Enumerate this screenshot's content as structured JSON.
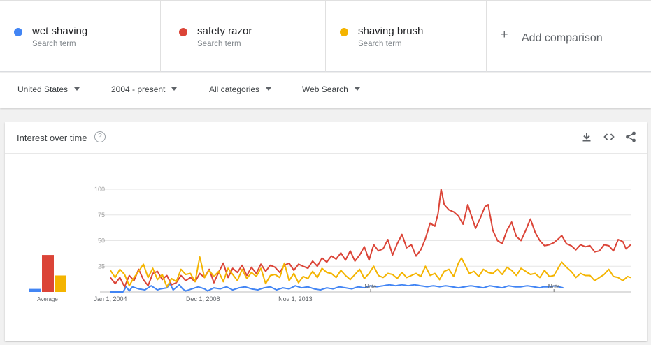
{
  "terms": [
    {
      "name": "wet shaving",
      "sub": "Search term",
      "color": "#4285f4"
    },
    {
      "name": "safety razor",
      "sub": "Search term",
      "color": "#db4437"
    },
    {
      "name": "shaving brush",
      "sub": "Search term",
      "color": "#f4b400"
    }
  ],
  "add_comparison": {
    "plus": "+",
    "label": "Add comparison"
  },
  "filters": {
    "region": "United States",
    "time": "2004 - present",
    "category": "All categories",
    "search_type": "Web Search"
  },
  "card": {
    "title": "Interest over time",
    "help": "?",
    "icons": [
      "download-icon",
      "embed-icon",
      "share-icon"
    ]
  },
  "chart_data": {
    "type": "line",
    "x_tick_labels": [
      "Jan 1, 2004",
      "Dec 1, 2008",
      "Nov 1, 2013"
    ],
    "y_ticks": [
      25,
      50,
      75,
      100
    ],
    "ylim": [
      0,
      100
    ],
    "notes": [
      "Note",
      "Note"
    ],
    "average_label": "Average",
    "averages": [
      {
        "name": "wet shaving",
        "value": 3
      },
      {
        "name": "safety razor",
        "value": 36
      },
      {
        "name": "shaving brush",
        "value": 16
      }
    ],
    "x_start": "2004-01",
    "x_end": "2018-10",
    "series": [
      {
        "name": "wet shaving",
        "color": "#4285f4",
        "anchors": [
          [
            0,
            0
          ],
          [
            8,
            0
          ],
          [
            10,
            5
          ],
          [
            12,
            1
          ],
          [
            14,
            5
          ],
          [
            18,
            3
          ],
          [
            22,
            2
          ],
          [
            26,
            6
          ],
          [
            30,
            2
          ],
          [
            32,
            3
          ],
          [
            36,
            4
          ],
          [
            38,
            8
          ],
          [
            40,
            2
          ],
          [
            44,
            7
          ],
          [
            46,
            3
          ],
          [
            48,
            1
          ],
          [
            52,
            3
          ],
          [
            56,
            5
          ],
          [
            60,
            3
          ],
          [
            62,
            1
          ],
          [
            66,
            4
          ],
          [
            70,
            3
          ],
          [
            74,
            5
          ],
          [
            78,
            2
          ],
          [
            82,
            4
          ],
          [
            86,
            5
          ],
          [
            90,
            3
          ],
          [
            94,
            2
          ],
          [
            98,
            4
          ],
          [
            102,
            5
          ],
          [
            106,
            2
          ],
          [
            110,
            4
          ],
          [
            114,
            3
          ],
          [
            118,
            6
          ],
          [
            122,
            4
          ],
          [
            126,
            5
          ],
          [
            130,
            3
          ],
          [
            134,
            2
          ],
          [
            138,
            4
          ],
          [
            142,
            3
          ],
          [
            146,
            5
          ],
          [
            150,
            4
          ],
          [
            154,
            3
          ],
          [
            158,
            5
          ],
          [
            162,
            4
          ],
          [
            166,
            6
          ],
          [
            170,
            5
          ],
          [
            174,
            6
          ],
          [
            178,
            7
          ],
          [
            182,
            6
          ],
          [
            186,
            7
          ],
          [
            190,
            6
          ],
          [
            194,
            7
          ],
          [
            198,
            6
          ],
          [
            202,
            5
          ],
          [
            206,
            6
          ],
          [
            210,
            5
          ],
          [
            214,
            6
          ],
          [
            218,
            5
          ],
          [
            222,
            4
          ],
          [
            226,
            5
          ],
          [
            230,
            6
          ],
          [
            234,
            5
          ],
          [
            238,
            4
          ],
          [
            242,
            6
          ],
          [
            246,
            5
          ],
          [
            250,
            4
          ],
          [
            254,
            6
          ],
          [
            258,
            5
          ],
          [
            262,
            5
          ],
          [
            266,
            6
          ],
          [
            270,
            5
          ],
          [
            274,
            4
          ],
          [
            276,
            5
          ],
          [
            280,
            5
          ],
          [
            284,
            6
          ],
          [
            286,
            5
          ],
          [
            289,
            4
          ]
        ]
      },
      {
        "name": "safety razor",
        "color": "#db4437",
        "anchors": [
          [
            0,
            14
          ],
          [
            3,
            8
          ],
          [
            6,
            14
          ],
          [
            9,
            5
          ],
          [
            12,
            16
          ],
          [
            15,
            11
          ],
          [
            18,
            22
          ],
          [
            21,
            12
          ],
          [
            24,
            6
          ],
          [
            27,
            18
          ],
          [
            30,
            20
          ],
          [
            33,
            12
          ],
          [
            36,
            16
          ],
          [
            39,
            7
          ],
          [
            42,
            9
          ],
          [
            45,
            16
          ],
          [
            48,
            11
          ],
          [
            51,
            14
          ],
          [
            54,
            10
          ],
          [
            57,
            18
          ],
          [
            60,
            14
          ],
          [
            63,
            22
          ],
          [
            66,
            9
          ],
          [
            69,
            19
          ],
          [
            72,
            28
          ],
          [
            75,
            14
          ],
          [
            78,
            23
          ],
          [
            81,
            19
          ],
          [
            84,
            26
          ],
          [
            87,
            16
          ],
          [
            90,
            24
          ],
          [
            93,
            18
          ],
          [
            96,
            27
          ],
          [
            99,
            20
          ],
          [
            102,
            26
          ],
          [
            105,
            24
          ],
          [
            108,
            19
          ],
          [
            111,
            26
          ],
          [
            114,
            28
          ],
          [
            117,
            21
          ],
          [
            120,
            27
          ],
          [
            123,
            25
          ],
          [
            126,
            23
          ],
          [
            129,
            30
          ],
          [
            132,
            25
          ],
          [
            135,
            33
          ],
          [
            138,
            29
          ],
          [
            141,
            35
          ],
          [
            144,
            32
          ],
          [
            147,
            38
          ],
          [
            150,
            31
          ],
          [
            153,
            40
          ],
          [
            156,
            30
          ],
          [
            159,
            36
          ],
          [
            162,
            44
          ],
          [
            165,
            31
          ],
          [
            168,
            46
          ],
          [
            171,
            40
          ],
          [
            174,
            42
          ],
          [
            177,
            51
          ],
          [
            180,
            36
          ],
          [
            183,
            47
          ],
          [
            186,
            56
          ],
          [
            189,
            43
          ],
          [
            192,
            46
          ],
          [
            195,
            35
          ],
          [
            198,
            41
          ],
          [
            201,
            52
          ],
          [
            204,
            67
          ],
          [
            207,
            64
          ],
          [
            209,
            76
          ],
          [
            211,
            100
          ],
          [
            213,
            85
          ],
          [
            216,
            80
          ],
          [
            219,
            78
          ],
          [
            222,
            74
          ],
          [
            225,
            66
          ],
          [
            228,
            85
          ],
          [
            231,
            71
          ],
          [
            233,
            62
          ],
          [
            236,
            72
          ],
          [
            239,
            83
          ],
          [
            241,
            85
          ],
          [
            244,
            60
          ],
          [
            247,
            50
          ],
          [
            250,
            47
          ],
          [
            253,
            60
          ],
          [
            256,
            68
          ],
          [
            259,
            54
          ],
          [
            262,
            50
          ],
          [
            265,
            60
          ],
          [
            268,
            71
          ],
          [
            271,
            58
          ],
          [
            274,
            50
          ],
          [
            277,
            45
          ],
          [
            280,
            46
          ],
          [
            283,
            48
          ],
          [
            286,
            52
          ],
          [
            288,
            55
          ],
          [
            291,
            47
          ],
          [
            294,
            45
          ],
          [
            297,
            41
          ],
          [
            300,
            46
          ],
          [
            303,
            44
          ],
          [
            306,
            45
          ],
          [
            309,
            39
          ],
          [
            312,
            40
          ],
          [
            315,
            46
          ],
          [
            318,
            45
          ],
          [
            321,
            40
          ],
          [
            324,
            51
          ],
          [
            327,
            49
          ],
          [
            329,
            42
          ],
          [
            332,
            46
          ]
        ]
      },
      {
        "name": "shaving brush",
        "color": "#f4b400",
        "anchors": [
          [
            0,
            21
          ],
          [
            3,
            14
          ],
          [
            6,
            22
          ],
          [
            9,
            17
          ],
          [
            12,
            6
          ],
          [
            15,
            14
          ],
          [
            18,
            20
          ],
          [
            21,
            27
          ],
          [
            24,
            14
          ],
          [
            27,
            23
          ],
          [
            30,
            12
          ],
          [
            33,
            17
          ],
          [
            36,
            5
          ],
          [
            39,
            13
          ],
          [
            42,
            10
          ],
          [
            45,
            22
          ],
          [
            48,
            17
          ],
          [
            51,
            18
          ],
          [
            54,
            10
          ],
          [
            57,
            34
          ],
          [
            60,
            14
          ],
          [
            63,
            21
          ],
          [
            66,
            15
          ],
          [
            69,
            20
          ],
          [
            72,
            10
          ],
          [
            75,
            23
          ],
          [
            78,
            17
          ],
          [
            81,
            11
          ],
          [
            84,
            22
          ],
          [
            87,
            13
          ],
          [
            90,
            19
          ],
          [
            93,
            15
          ],
          [
            96,
            23
          ],
          [
            99,
            8
          ],
          [
            102,
            16
          ],
          [
            105,
            17
          ],
          [
            108,
            14
          ],
          [
            111,
            28
          ],
          [
            114,
            11
          ],
          [
            117,
            18
          ],
          [
            120,
            9
          ],
          [
            123,
            15
          ],
          [
            126,
            13
          ],
          [
            129,
            20
          ],
          [
            132,
            14
          ],
          [
            135,
            23
          ],
          [
            138,
            19
          ],
          [
            141,
            18
          ],
          [
            144,
            14
          ],
          [
            147,
            21
          ],
          [
            150,
            16
          ],
          [
            153,
            12
          ],
          [
            156,
            17
          ],
          [
            159,
            22
          ],
          [
            162,
            13
          ],
          [
            165,
            18
          ],
          [
            168,
            25
          ],
          [
            171,
            16
          ],
          [
            174,
            14
          ],
          [
            177,
            18
          ],
          [
            180,
            17
          ],
          [
            183,
            13
          ],
          [
            186,
            19
          ],
          [
            189,
            14
          ],
          [
            192,
            16
          ],
          [
            195,
            18
          ],
          [
            198,
            15
          ],
          [
            201,
            25
          ],
          [
            204,
            16
          ],
          [
            207,
            18
          ],
          [
            210,
            12
          ],
          [
            213,
            20
          ],
          [
            216,
            22
          ],
          [
            219,
            15
          ],
          [
            222,
            28
          ],
          [
            224,
            33
          ],
          [
            226,
            27
          ],
          [
            229,
            18
          ],
          [
            232,
            20
          ],
          [
            235,
            15
          ],
          [
            238,
            22
          ],
          [
            241,
            19
          ],
          [
            244,
            18
          ],
          [
            247,
            22
          ],
          [
            250,
            17
          ],
          [
            253,
            24
          ],
          [
            256,
            21
          ],
          [
            259,
            16
          ],
          [
            262,
            23
          ],
          [
            265,
            20
          ],
          [
            268,
            17
          ],
          [
            271,
            18
          ],
          [
            274,
            14
          ],
          [
            277,
            21
          ],
          [
            280,
            15
          ],
          [
            283,
            16
          ],
          [
            286,
            24
          ],
          [
            288,
            29
          ],
          [
            291,
            24
          ],
          [
            294,
            20
          ],
          [
            297,
            14
          ],
          [
            300,
            18
          ],
          [
            303,
            16
          ],
          [
            306,
            16
          ],
          [
            309,
            11
          ],
          [
            312,
            14
          ],
          [
            315,
            17
          ],
          [
            318,
            22
          ],
          [
            321,
            15
          ],
          [
            324,
            14
          ],
          [
            327,
            11
          ],
          [
            330,
            15
          ],
          [
            332,
            14
          ]
        ]
      }
    ]
  }
}
